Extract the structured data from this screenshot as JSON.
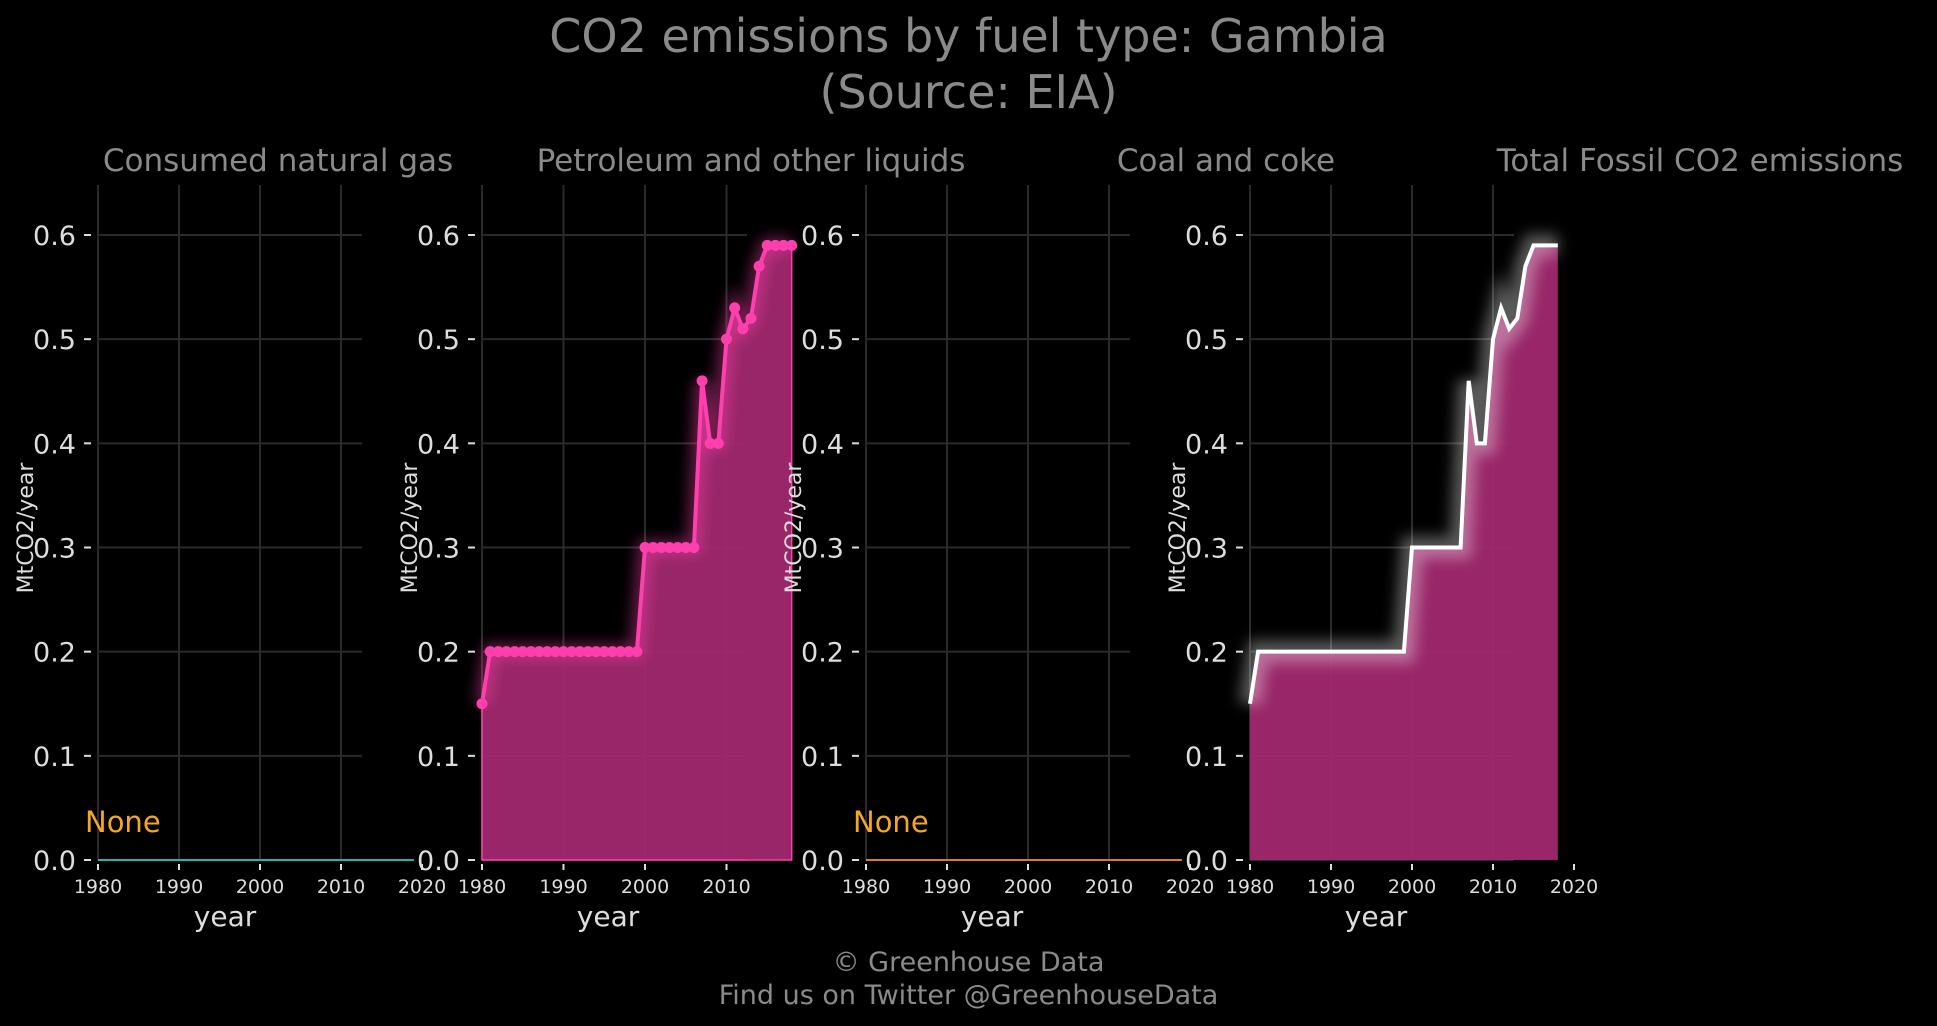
{
  "title_line1": "CO2 emissions by fuel type: Gambia",
  "title_line2": "(Source: EIA)",
  "footer_line1": "© Greenhouse Data",
  "footer_line2": "Find us on Twitter @GreenhouseData",
  "colors": {
    "background": "#000000",
    "grid": "#2a2a2a",
    "text": "#8a8a8a",
    "tick_text": "#dddddd",
    "gas_line": "#1fb5ad",
    "petroleum": "#ff3fae",
    "petroleum_fill": "#a0286e",
    "coal_line": "#e07b1a",
    "total_line": "#ffffff",
    "none_label": "#f5a623"
  },
  "chart_data": [
    {
      "type": "line",
      "title": "Consumed natural gas",
      "xlabel": "year",
      "ylabel": "MtCO2/year",
      "xlim": [
        1978.5,
        2020.5
      ],
      "ylim": [
        0,
        0.65
      ],
      "xticks": [
        1980,
        1990,
        2000,
        2010,
        2020
      ],
      "yticks": [
        0.0,
        0.1,
        0.2,
        0.3,
        0.4,
        0.5,
        0.6
      ],
      "grid": true,
      "annotation": "None",
      "series": [
        {
          "x": [
            1980,
            2019
          ],
          "values": [
            0,
            0
          ]
        }
      ]
    },
    {
      "type": "area",
      "title": "Petroleum and other liquids",
      "xlabel": "year",
      "ylabel": "MtCO2/year",
      "xlim": [
        1978.5,
        2019.8
      ],
      "ylim": [
        0,
        0.65
      ],
      "xticks": [
        1980,
        1990,
        2000,
        2010
      ],
      "yticks": [
        0.0,
        0.1,
        0.2,
        0.3,
        0.4,
        0.5,
        0.6
      ],
      "grid": true,
      "series": [
        {
          "x": [
            1980,
            1981,
            1982,
            1983,
            1984,
            1985,
            1986,
            1987,
            1988,
            1989,
            1990,
            1991,
            1992,
            1993,
            1994,
            1995,
            1996,
            1997,
            1998,
            1999,
            2000,
            2001,
            2002,
            2003,
            2004,
            2005,
            2006,
            2007,
            2008,
            2009,
            2010,
            2011,
            2012,
            2013,
            2014,
            2015,
            2016,
            2017,
            2018
          ],
          "values": [
            0.15,
            0.2,
            0.2,
            0.2,
            0.2,
            0.2,
            0.2,
            0.2,
            0.2,
            0.2,
            0.2,
            0.2,
            0.2,
            0.2,
            0.2,
            0.2,
            0.2,
            0.2,
            0.2,
            0.2,
            0.3,
            0.3,
            0.3,
            0.3,
            0.3,
            0.3,
            0.3,
            0.46,
            0.4,
            0.4,
            0.5,
            0.53,
            0.51,
            0.52,
            0.57,
            0.59,
            0.59,
            0.59,
            0.59
          ]
        }
      ]
    },
    {
      "type": "line",
      "title": "Coal and coke",
      "xlabel": "year",
      "ylabel": "MtCO2/year",
      "xlim": [
        1978.5,
        2020.5
      ],
      "ylim": [
        0,
        0.65
      ],
      "xticks": [
        1980,
        1990,
        2000,
        2010,
        2020
      ],
      "yticks": [
        0.0,
        0.1,
        0.2,
        0.3,
        0.4,
        0.5,
        0.6
      ],
      "grid": true,
      "annotation": "None",
      "series": [
        {
          "x": [
            1980,
            2019
          ],
          "values": [
            0,
            0
          ]
        }
      ]
    },
    {
      "type": "area",
      "title": "Total Fossil CO2 emissions",
      "xlabel": "year",
      "ylabel": "MtCO2/year",
      "xlim": [
        1978.5,
        2021
      ],
      "ylim": [
        0,
        0.65
      ],
      "xticks": [
        1980,
        1990,
        2000,
        2010,
        2020
      ],
      "yticks": [
        0.0,
        0.1,
        0.2,
        0.3,
        0.4,
        0.5,
        0.6
      ],
      "grid": true,
      "series": [
        {
          "x": [
            1980,
            1981,
            1982,
            1983,
            1984,
            1985,
            1986,
            1987,
            1988,
            1989,
            1990,
            1991,
            1992,
            1993,
            1994,
            1995,
            1996,
            1997,
            1998,
            1999,
            2000,
            2001,
            2002,
            2003,
            2004,
            2005,
            2006,
            2007,
            2008,
            2009,
            2010,
            2011,
            2012,
            2013,
            2014,
            2015,
            2016,
            2017,
            2018
          ],
          "values": [
            0.15,
            0.2,
            0.2,
            0.2,
            0.2,
            0.2,
            0.2,
            0.2,
            0.2,
            0.2,
            0.2,
            0.2,
            0.2,
            0.2,
            0.2,
            0.2,
            0.2,
            0.2,
            0.2,
            0.2,
            0.3,
            0.3,
            0.3,
            0.3,
            0.3,
            0.3,
            0.3,
            0.46,
            0.4,
            0.4,
            0.5,
            0.53,
            0.51,
            0.52,
            0.57,
            0.59,
            0.59,
            0.59,
            0.59
          ]
        }
      ]
    }
  ]
}
